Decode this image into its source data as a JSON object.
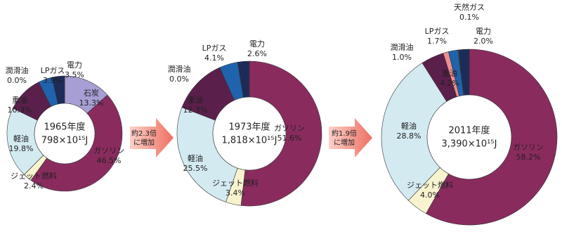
{
  "chart_data": [
    {
      "type": "donut",
      "title": "1965年度",
      "subtitle": "798×10¹⁵J",
      "categories": [
        "石炭",
        "ガソリン",
        "ジェット燃料",
        "軽油",
        "重油",
        "潤滑油",
        "LPガス",
        "電力"
      ],
      "values": [
        13.3,
        46.5,
        2.4,
        19.8,
        10.3,
        0,
        3.9,
        3.5
      ],
      "value_labels": [
        "13.3%",
        "46.5%",
        "2.4%",
        "19.8%",
        "10.3%",
        "0.0%",
        "3.9%",
        "3.5%"
      ],
      "colors": [
        "#a79fd3",
        "#8a2b5e",
        "#f7f3cf",
        "#d3eaf1",
        "#5b1f4c",
        "#ee8f8f",
        "#1f63ad",
        "#1d2b58"
      ]
    },
    {
      "type": "donut",
      "title": "1973年度",
      "subtitle": "1,818×10¹⁵J",
      "categories": [
        "ガソリン",
        "ジェット燃料",
        "軽油",
        "重油",
        "潤滑油",
        "LPガス",
        "電力"
      ],
      "values": [
        51.6,
        3.4,
        25.5,
        12.3,
        0,
        4.1,
        2.6
      ],
      "value_labels": [
        "51.6%",
        "3.4%",
        "25.5%",
        "12.3%",
        "0.0%",
        "4.1%",
        "2.6%"
      ],
      "colors": [
        "#8a2b5e",
        "#f7f3cf",
        "#d3eaf1",
        "#5b1f4c",
        "#ee8f8f",
        "#1f63ad",
        "#1d2b58"
      ]
    },
    {
      "type": "donut",
      "title": "2011年度",
      "subtitle": "3,390×10¹⁵J",
      "categories": [
        "ガソリン",
        "ジェット燃料",
        "軽油",
        "重油",
        "潤滑油",
        "LPガス",
        "天然ガス",
        "電力"
      ],
      "values": [
        58.2,
        4.0,
        28.8,
        4.2,
        1.0,
        1.7,
        0.1,
        2.0
      ],
      "value_labels": [
        "58.2%",
        "4.0%",
        "28.8%",
        "4.2%",
        "1.0%",
        "1.7%",
        "0.1%",
        "2.0%"
      ],
      "colors": [
        "#8a2b5e",
        "#f7f3cf",
        "#d3eaf1",
        "#5b1f4c",
        "#ee8f8f",
        "#1f63ad",
        "#ffffff",
        "#1d2b58"
      ]
    }
  ],
  "arrows": [
    [
      "約2.3倍",
      "に増加"
    ],
    [
      "約1.9倍",
      "に増加"
    ]
  ]
}
